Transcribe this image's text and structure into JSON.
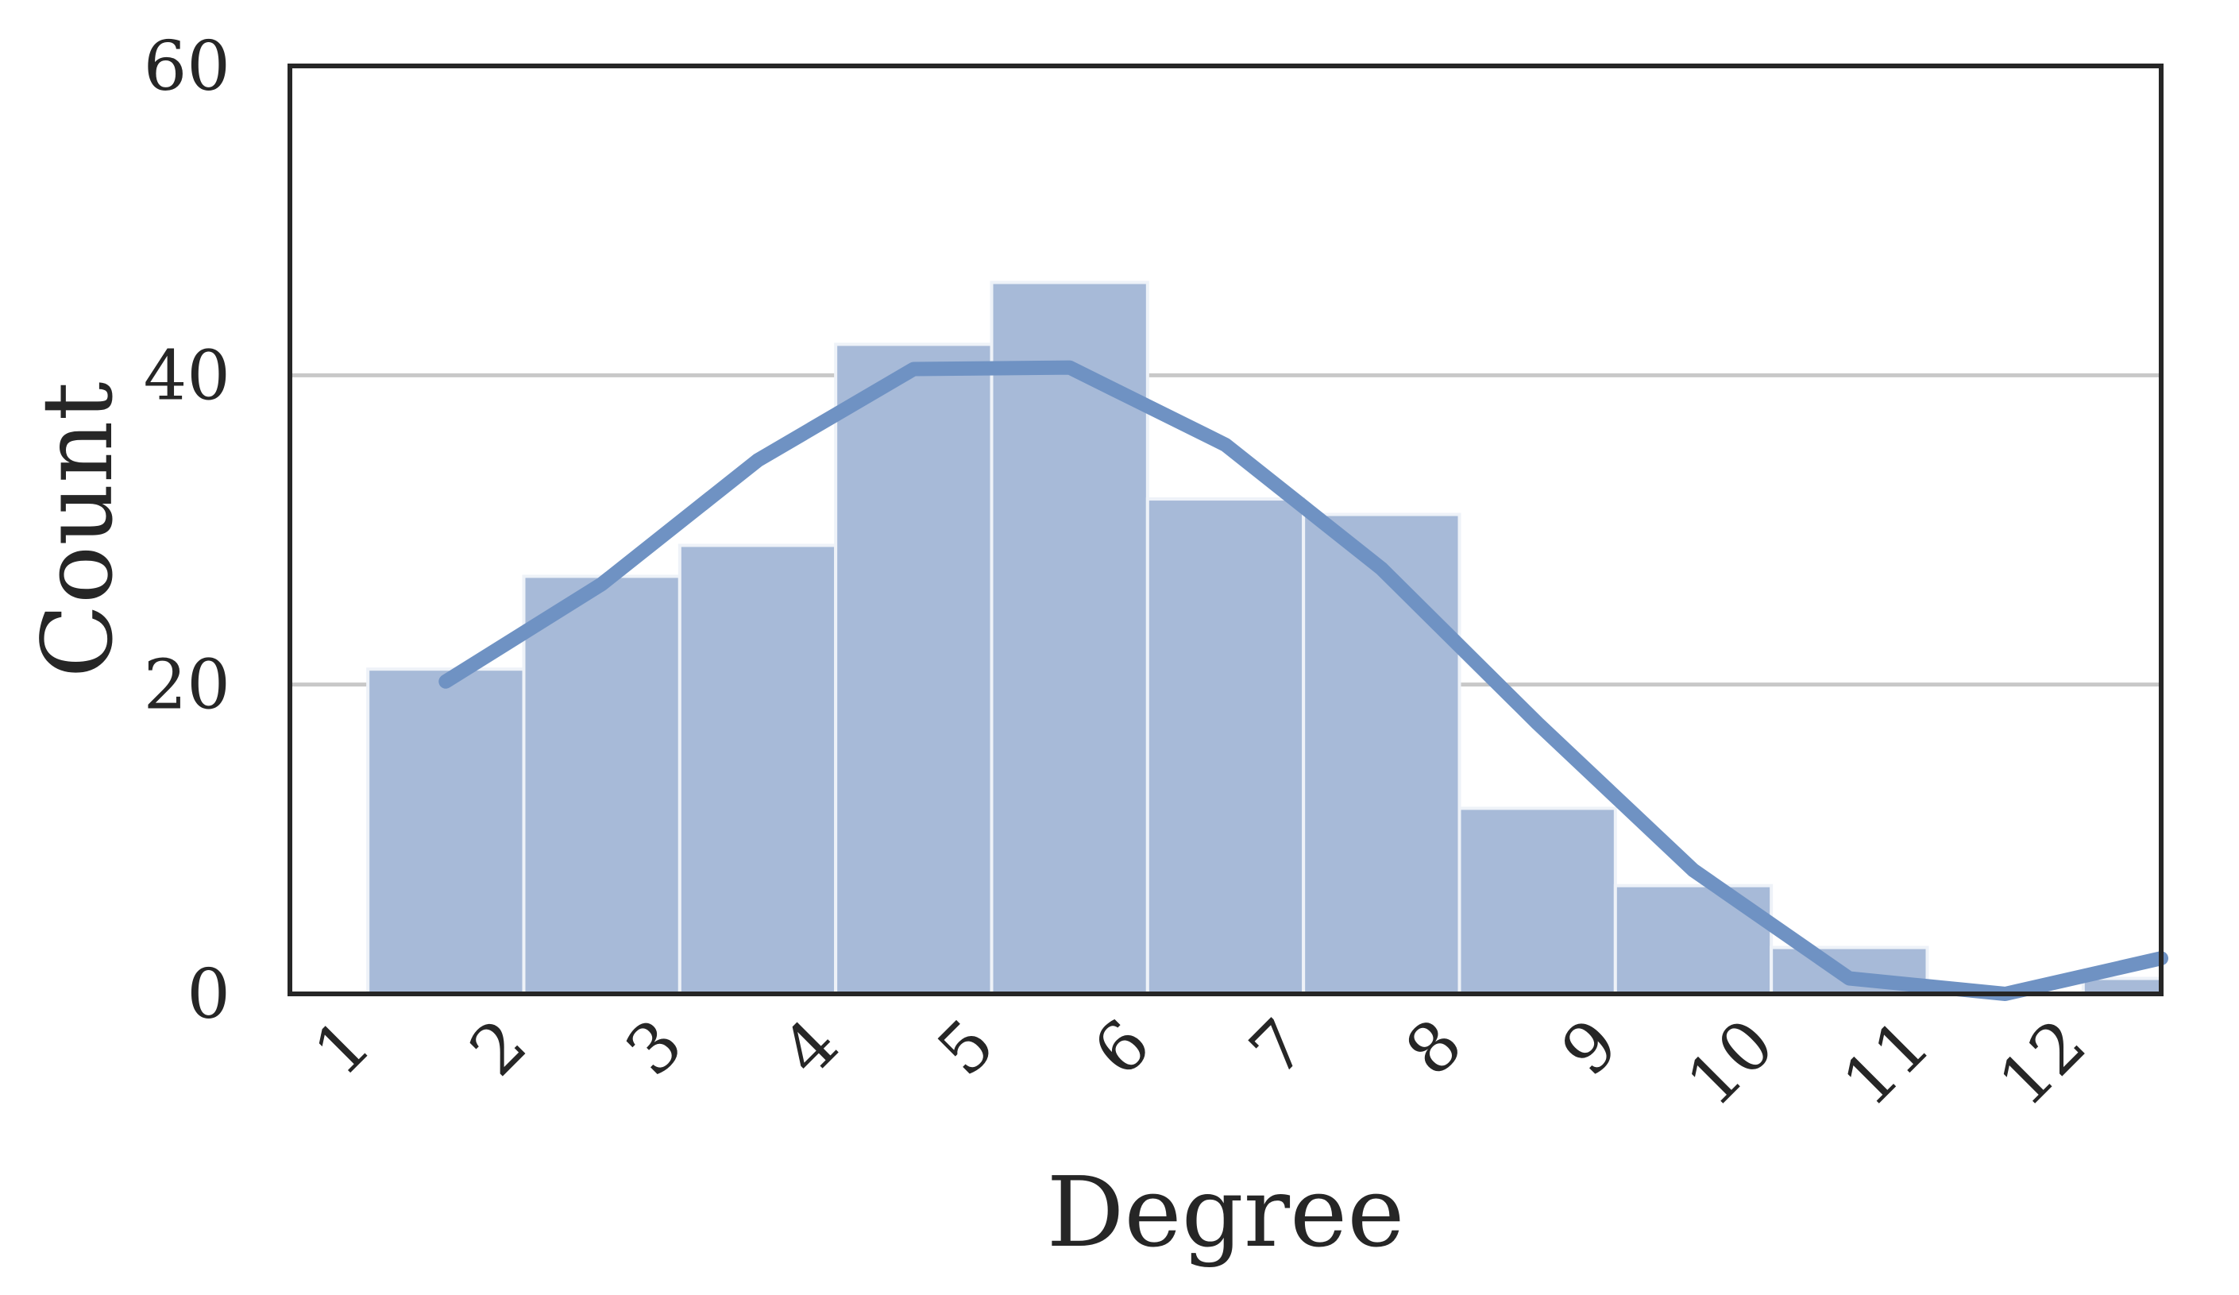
{
  "chart_data": {
    "type": "bar",
    "title": "",
    "xlabel": "Degree",
    "ylabel": "Count",
    "xlim": [
      0.5,
      12.5
    ],
    "ylim": [
      0,
      60
    ],
    "grid": true,
    "yticks": [
      0,
      20,
      40,
      60
    ],
    "xticks": [
      1,
      2,
      3,
      4,
      5,
      6,
      7,
      8,
      9,
      10,
      11,
      12
    ],
    "bin_edges": [
      1,
      2,
      3,
      4,
      5,
      6,
      7,
      8,
      9,
      10,
      11,
      12,
      13
    ],
    "values": [
      21,
      27,
      29,
      42,
      46,
      32,
      31,
      12,
      7,
      3,
      0,
      1
    ],
    "bar_color": "#a7bad8",
    "kde_line": {
      "color": "#6f92c3",
      "x": [
        1.5,
        2.5,
        3.5,
        4.5,
        5.5,
        6.5,
        7.5,
        8.5,
        9.5,
        10.5,
        11.5,
        12.5
      ],
      "y": [
        20.2,
        26.5,
        34.5,
        40.4,
        40.5,
        35.5,
        27.5,
        17.5,
        8.0,
        1.0,
        -1.5,
        2.3
      ]
    }
  }
}
